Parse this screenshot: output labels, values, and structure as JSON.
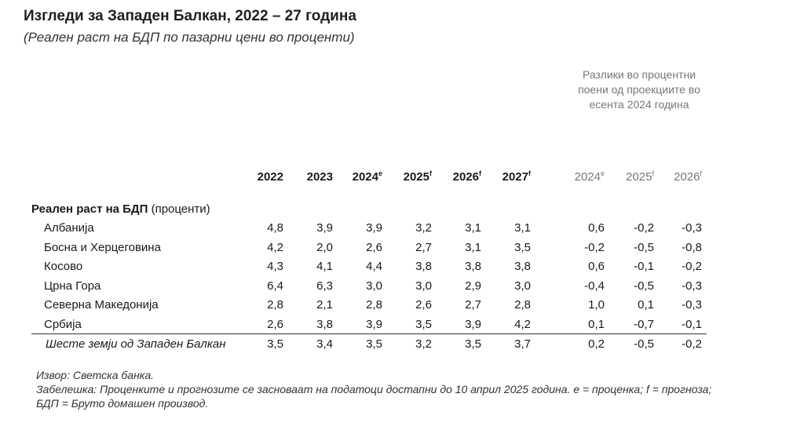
{
  "title": "Изгледи за Западен Балкан, 2022 – 27 година",
  "subtitle": "(Реален раст на БДП по пазарни цени во проценти)",
  "diff_note": "Разлики во процентни поени од проекциите во есента 2024 година",
  "headers": [
    {
      "label": "2022",
      "sup": ""
    },
    {
      "label": "2023",
      "sup": ""
    },
    {
      "label": "2024",
      "sup": "e"
    },
    {
      "label": "2025",
      "sup": "f"
    },
    {
      "label": "2026",
      "sup": "f"
    },
    {
      "label": "2027",
      "sup": "f"
    },
    {
      "label": "2024",
      "sup": "e"
    },
    {
      "label": "2025",
      "sup": "f"
    },
    {
      "label": "2026",
      "sup": "f"
    }
  ],
  "section": {
    "bold": "Реален раст на БДП",
    "rest": " (проценти)"
  },
  "rows": [
    {
      "name": "Албанија",
      "values": [
        "4,8",
        "3,9",
        "3,9",
        "3,2",
        "3,1",
        "3,1",
        "0,6",
        "-0,2",
        "-0,3"
      ]
    },
    {
      "name": "Босна и Херцеговина",
      "values": [
        "4,2",
        "2,0",
        "2,6",
        "2,7",
        "3,1",
        "3,5",
        "-0,2",
        "-0,5",
        "-0,8"
      ]
    },
    {
      "name": "Косово",
      "values": [
        "4,3",
        "4,1",
        "4,4",
        "3,8",
        "3,8",
        "3,8",
        "0,6",
        "-0,1",
        "-0,2"
      ]
    },
    {
      "name": "Црна Гора",
      "values": [
        "6,4",
        "6,3",
        "3,0",
        "3,0",
        "2,9",
        "3,0",
        "-0,4",
        "-0,5",
        "-0,3"
      ]
    },
    {
      "name": "Северна Македонија",
      "values": [
        "2,8",
        "2,1",
        "2,8",
        "2,6",
        "2,7",
        "2,8",
        "1,0",
        "0,1",
        "-0,3"
      ]
    },
    {
      "name": "Србија",
      "values": [
        "2,6",
        "3,8",
        "3,9",
        "3,5",
        "3,9",
        "4,2",
        "0,1",
        "-0,7",
        "-0,1"
      ]
    }
  ],
  "total": {
    "name": "Шесте земји од Западен Балкан",
    "values": [
      "3,5",
      "3,4",
      "3,5",
      "3,2",
      "3,5",
      "3,7",
      "0,2",
      "-0,5",
      "-0,2"
    ]
  },
  "footer": [
    "Извор: Светска банка.",
    "Забелешка: Проценките и прогнозите се засноваат на податоци достапни до 10 април 2025 година. е = проценка; f = прогноза;",
    "БДП = Бруто домашен производ."
  ]
}
